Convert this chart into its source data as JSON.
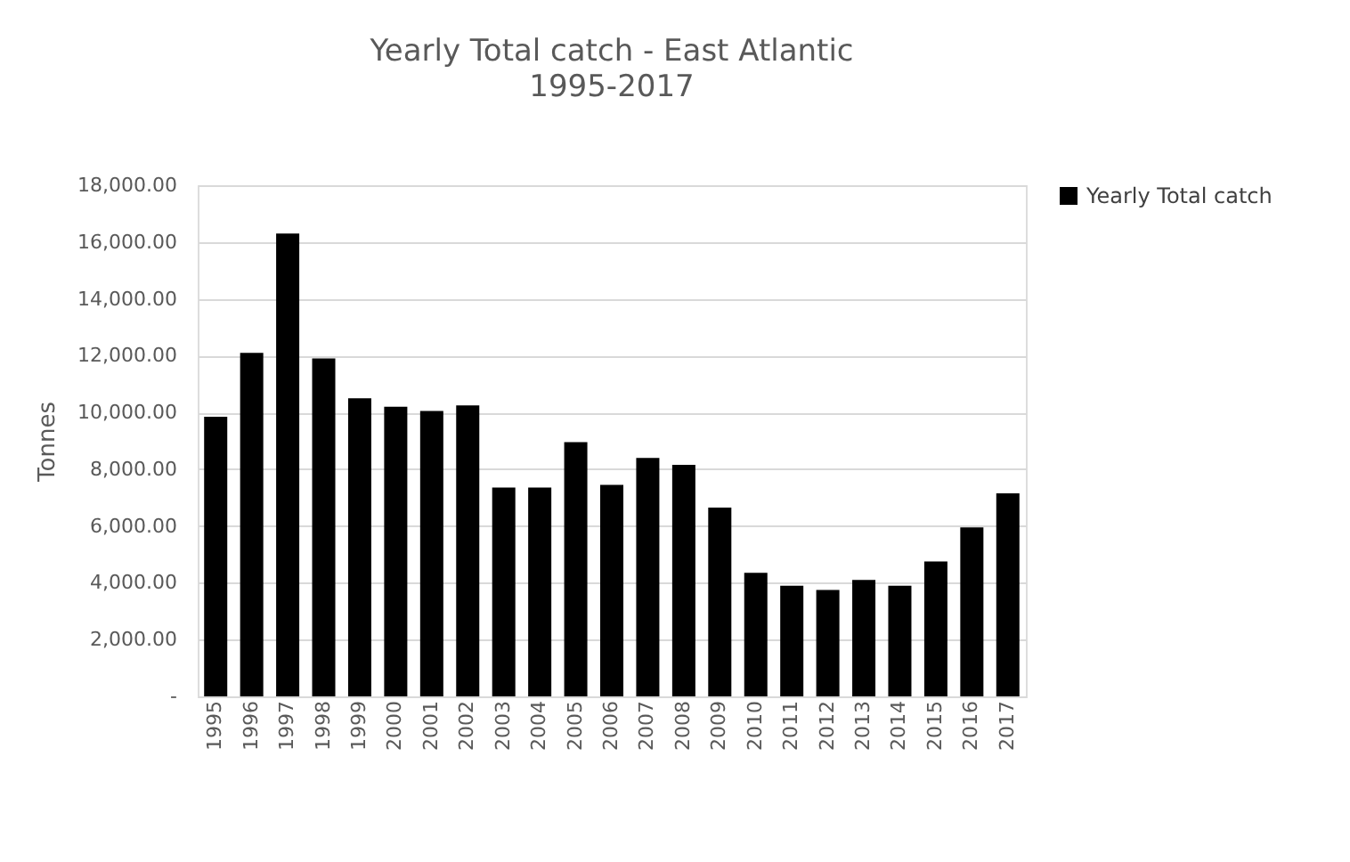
{
  "chart_data": {
    "type": "bar",
    "title": "Yearly  Total catch - East Atlantic",
    "subtitle": "1995-2017",
    "ylabel": "Tonnes",
    "categories": [
      "1995",
      "1996",
      "1997",
      "1998",
      "1999",
      "2000",
      "2001",
      "2002",
      "2003",
      "2004",
      "2005",
      "2006",
      "2007",
      "2008",
      "2009",
      "2010",
      "2011",
      "2012",
      "2013",
      "2014",
      "2015",
      "2016",
      "2017"
    ],
    "series": [
      {
        "name": "Yearly Total catch",
        "color": "#000000",
        "values": [
          9850,
          12100,
          16300,
          11900,
          10500,
          10200,
          10050,
          10250,
          7350,
          7350,
          8950,
          7450,
          8400,
          8150,
          6650,
          4350,
          3900,
          3750,
          4100,
          3900,
          4750,
          5950,
          7150
        ]
      }
    ],
    "ylim": [
      0,
      18000
    ],
    "yticks": [
      {
        "value": 0,
        "label": "-"
      },
      {
        "value": 2000,
        "label": "2,000.00"
      },
      {
        "value": 4000,
        "label": "4,000.00"
      },
      {
        "value": 6000,
        "label": "6,000.00"
      },
      {
        "value": 8000,
        "label": "8,000.00"
      },
      {
        "value": 10000,
        "label": "10,000.00"
      },
      {
        "value": 12000,
        "label": "12,000.00"
      },
      {
        "value": 14000,
        "label": "14,000.00"
      },
      {
        "value": 16000,
        "label": "16,000.00"
      },
      {
        "value": 18000,
        "label": "18,000.00"
      }
    ],
    "grid": "y",
    "legend": "right"
  }
}
